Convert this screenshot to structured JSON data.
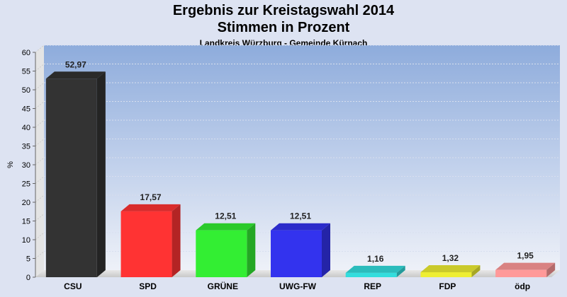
{
  "chart_data": {
    "type": "bar",
    "title": "Ergebnis zur Kreistagswahl 2014",
    "subtitle": "Stimmen in Prozent",
    "subtitle2": "Landkreis Würzburg - Gemeinde Kürnach",
    "ylabel": "%",
    "xlabel": "",
    "ylim": [
      0,
      60
    ],
    "yticks": [
      0,
      5,
      10,
      15,
      20,
      25,
      30,
      35,
      40,
      45,
      50,
      55,
      60
    ],
    "categories": [
      "CSU",
      "SPD",
      "GRÜNE",
      "UWG-FW",
      "REP",
      "FDP",
      "ödp"
    ],
    "values": [
      52.97,
      17.57,
      12.51,
      12.51,
      1.16,
      1.32,
      1.95
    ],
    "value_labels": [
      "52,97",
      "17,57",
      "12,51",
      "12,51",
      "1,16",
      "1,32",
      "1,95"
    ],
    "colors": [
      "#333333",
      "#ff3333",
      "#33ee33",
      "#3333ee",
      "#33dddd",
      "#eeee33",
      "#ff9999"
    ],
    "grid": true,
    "legend": "none"
  }
}
